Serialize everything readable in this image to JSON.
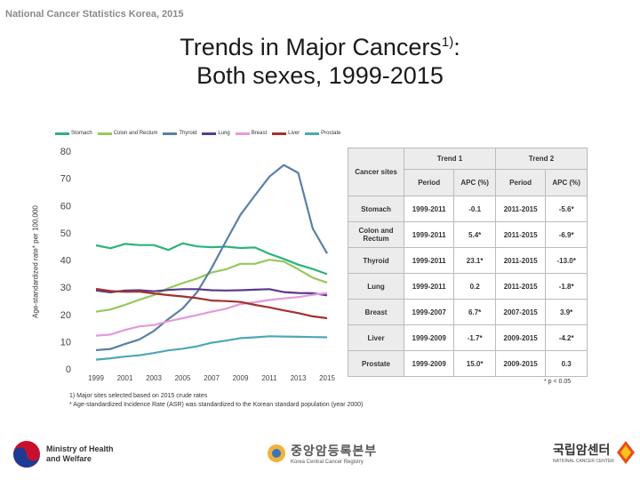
{
  "header_note": "National Cancer Statistics Korea, 2015",
  "title": {
    "line1": "Trends in Major Cancers",
    "sup": "1)",
    "line1_suffix": ":",
    "line2": "Both sexes, 1999-2015"
  },
  "chart_data": {
    "type": "line",
    "ylabel": "Age-standardized rate* per 100,000",
    "ylim": [
      0,
      80
    ],
    "yticks": [
      "0",
      "10",
      "20",
      "30",
      "40",
      "50",
      "60",
      "70",
      "80"
    ],
    "x": [
      1999,
      2000,
      2001,
      2002,
      2003,
      2004,
      2005,
      2006,
      2007,
      2008,
      2009,
      2010,
      2011,
      2012,
      2013,
      2014,
      2015
    ],
    "xticks": [
      "1999",
      "2001",
      "2003",
      "2005",
      "2007",
      "2009",
      "2011",
      "2013",
      "2015"
    ],
    "series": [
      {
        "name": "Stomach",
        "color": "#2bb37a",
        "values": [
          45.4,
          44.3,
          45.9,
          45.5,
          45.5,
          43.7,
          46.1,
          45.0,
          44.7,
          44.9,
          44.4,
          44.6,
          42.3,
          40.4,
          38.3,
          36.7,
          34.8
        ]
      },
      {
        "name": "Colon and Rectum",
        "color": "#96c85a",
        "values": [
          21.0,
          21.8,
          23.5,
          25.4,
          27.1,
          29.6,
          31.5,
          33.2,
          35.4,
          36.6,
          38.6,
          38.6,
          40.1,
          39.4,
          36.6,
          33.5,
          31.7
        ]
      },
      {
        "name": "Thyroid",
        "color": "#5b7fa8",
        "values": [
          6.9,
          7.3,
          9.1,
          10.8,
          13.9,
          18.3,
          22.2,
          28.2,
          37.0,
          47.0,
          56.6,
          63.7,
          70.6,
          74.9,
          72.0,
          51.6,
          42.4
        ]
      },
      {
        "name": "Lung",
        "color": "#5b3a8c",
        "values": [
          28.8,
          28.1,
          28.8,
          28.9,
          28.5,
          29.0,
          29.3,
          29.3,
          28.9,
          28.8,
          28.9,
          29.1,
          29.3,
          28.2,
          27.9,
          27.8,
          27.0
        ]
      },
      {
        "name": "Breast",
        "color": "#e59ad8",
        "values": [
          12.2,
          12.6,
          14.3,
          15.6,
          16.1,
          17.5,
          18.6,
          19.8,
          21.0,
          22.1,
          23.8,
          24.5,
          25.3,
          25.9,
          26.4,
          27.2,
          27.9
        ]
      },
      {
        "name": "Liver",
        "color": "#a2312f",
        "values": [
          29.4,
          28.6,
          28.3,
          28.4,
          27.7,
          27.1,
          26.6,
          26.0,
          25.1,
          24.9,
          24.6,
          23.5,
          22.6,
          21.5,
          20.5,
          19.3,
          18.6
        ]
      },
      {
        "name": "Prostate",
        "color": "#4fa6b8",
        "values": [
          3.4,
          3.9,
          4.5,
          5.0,
          5.8,
          6.8,
          7.4,
          8.3,
          9.6,
          10.4,
          11.3,
          11.6,
          12.0,
          11.9,
          11.8,
          11.7,
          11.6
        ]
      }
    ]
  },
  "legend": [
    "Stomach",
    "Colon and Rectum",
    "Thyroid",
    "Lung",
    "Breast",
    "Liver",
    "Prostate"
  ],
  "table": {
    "header_site": "Cancer sites",
    "trend1": "Trend 1",
    "trend2": "Trend 2",
    "col_period": "Period",
    "col_apc": "APC (%)",
    "rows": [
      {
        "site": "Stomach",
        "p1": "1999-2011",
        "apc1": "-0.1",
        "p2": "2011-2015",
        "apc2": "-5.6*"
      },
      {
        "site": "Colon and Rectum",
        "p1": "1999-2011",
        "apc1": "5.4*",
        "p2": "2011-2015",
        "apc2": "-6.9*"
      },
      {
        "site": "Thyroid",
        "p1": "1999-2011",
        "apc1": "23.1*",
        "p2": "2011-2015",
        "apc2": "-13.0*"
      },
      {
        "site": "Lung",
        "p1": "1999-2011",
        "apc1": "0.2",
        "p2": "2011-2015",
        "apc2": "-1.8*"
      },
      {
        "site": "Breast",
        "p1": "1999-2007",
        "apc1": "6.7*",
        "p2": "2007-2015",
        "apc2": "3.9*"
      },
      {
        "site": "Liver",
        "p1": "1999-2009",
        "apc1": "-1.7*",
        "p2": "2009-2015",
        "apc2": "-4.2*"
      },
      {
        "site": "Prostate",
        "p1": "1999-2009",
        "apc1": "15.0*",
        "p2": "2009-2015",
        "apc2": "0.3"
      }
    ]
  },
  "sig_note": "* p < 0.05",
  "footnotes": {
    "line1": "1) Major sites selected based on 2015 crude rates",
    "line2": "* Age-standardized Incidence Rate (ASR) was standardized to the Korean standard population (year 2000)"
  },
  "logos": {
    "ministry": {
      "line1": "Ministry of Health",
      "line2": "and Welfare"
    },
    "registry": {
      "korean": "중앙암등록본부",
      "english": "Korea Central Cancer Registry"
    },
    "ncc": {
      "korean": "국립암센터",
      "english": "NATIONAL CANCER CENTER"
    }
  }
}
